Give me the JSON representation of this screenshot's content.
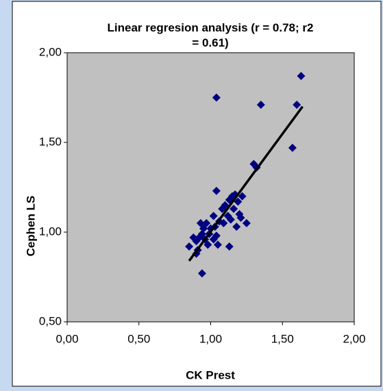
{
  "chart_data": {
    "type": "scatter",
    "title": "Linear regresion analysis (r = 0.78; r2 = 0.61)",
    "x_label": "CK Prest",
    "y_label": "Cephen LS",
    "series": [
      {
        "color": "#000080",
        "x": [
          1.63,
          1.04,
          1.35,
          1.6,
          1.57,
          1.3,
          1.32,
          1.04,
          1.17,
          1.15,
          1.13,
          1.19,
          1.1,
          1.22,
          1.16,
          1.2,
          1.08,
          1.12,
          1.06,
          1.14,
          1.21,
          1.18,
          1.25,
          1.02,
          1.0,
          0.97,
          0.93,
          0.95,
          1.03,
          0.99,
          1.04,
          0.96,
          0.92,
          0.9,
          0.88,
          0.85,
          0.91,
          0.98,
          1.02,
          1.05,
          0.94,
          1.13,
          0.9,
          1.09,
          0.94
        ],
        "y": [
          1.87,
          1.75,
          1.71,
          1.71,
          1.47,
          1.38,
          1.36,
          1.23,
          1.21,
          1.2,
          1.18,
          1.17,
          1.15,
          1.2,
          1.13,
          1.1,
          1.13,
          1.09,
          1.06,
          1.07,
          1.08,
          1.03,
          1.05,
          1.09,
          1.02,
          1.05,
          1.05,
          1.02,
          1.03,
          0.99,
          0.98,
          0.96,
          0.97,
          0.95,
          0.97,
          0.92,
          0.9,
          0.93,
          0.96,
          0.93,
          0.99,
          0.92,
          0.88,
          1.05,
          0.77
        ]
      }
    ],
    "regression_line": {
      "color": "#000000",
      "x": [
        0.85,
        1.64
      ],
      "y": [
        0.84,
        1.7
      ]
    },
    "xlim": [
      0,
      2
    ],
    "ylim": [
      0.5,
      2
    ],
    "xticks": [
      {
        "value": 0,
        "label": "0,00"
      },
      {
        "value": 0.5,
        "label": "0,50"
      },
      {
        "value": 1,
        "label": "1,00"
      },
      {
        "value": 1.5,
        "label": "1,50"
      },
      {
        "value": 2,
        "label": "2,00"
      }
    ],
    "yticks": [
      {
        "value": 0.5,
        "label": "0,50"
      },
      {
        "value": 1,
        "label": "1,00"
      },
      {
        "value": 1.5,
        "label": "1,50"
      },
      {
        "value": 2,
        "label": "2,00"
      }
    ],
    "plot_background": "#c0c0c0"
  }
}
